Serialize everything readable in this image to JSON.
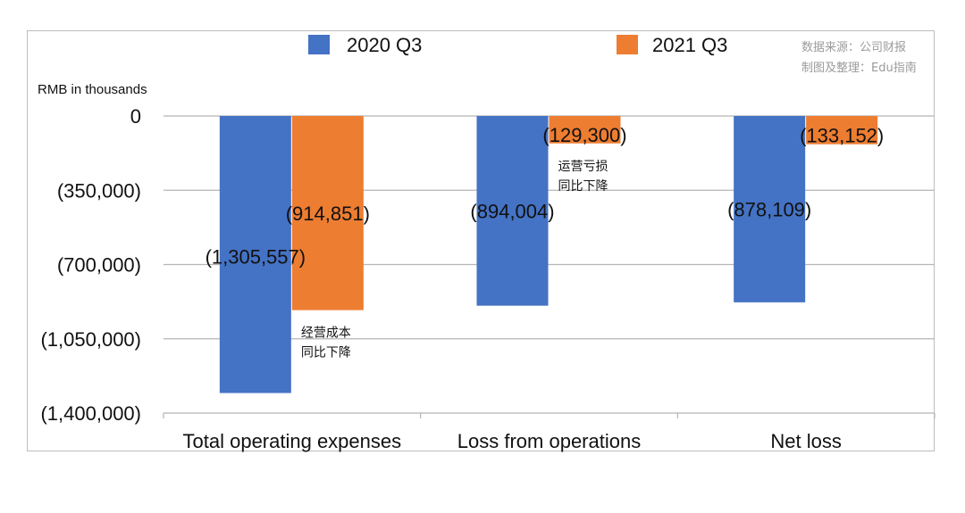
{
  "chart_data": {
    "type": "bar",
    "unit_label": "RMB in thousands",
    "categories": [
      "Total operating expenses",
      "Loss from operations",
      "Net loss"
    ],
    "series": [
      {
        "name": "2020 Q3",
        "color": "#4472c4",
        "values": [
          -1305557,
          -894004,
          -878109
        ],
        "labels": [
          "(1,305,557)",
          "(894,004)",
          "(878,109)"
        ]
      },
      {
        "name": "2021 Q3",
        "color": "#ed7d31",
        "values": [
          -914851,
          -129300,
          -133152
        ],
        "labels": [
          "(914,851)",
          "(129,300)",
          "(133,152)"
        ]
      }
    ],
    "ylim": [
      -1400000,
      0
    ],
    "yticks": [
      0,
      -350000,
      -700000,
      -1050000,
      -1400000
    ],
    "ytick_labels": [
      "0",
      "(350,000)",
      "(700,000)",
      "(1,050,000)",
      "(1,400,000)"
    ],
    "grid": true,
    "legend": "top",
    "source_lines": [
      "数据来源：公司财报",
      "制图及整理：Edu指南"
    ],
    "annotations": [
      {
        "category_index": 0,
        "lines": [
          "经营成本",
          "同比下降"
        ]
      },
      {
        "category_index": 1,
        "lines": [
          "运营亏损",
          "同比下降"
        ]
      }
    ]
  }
}
